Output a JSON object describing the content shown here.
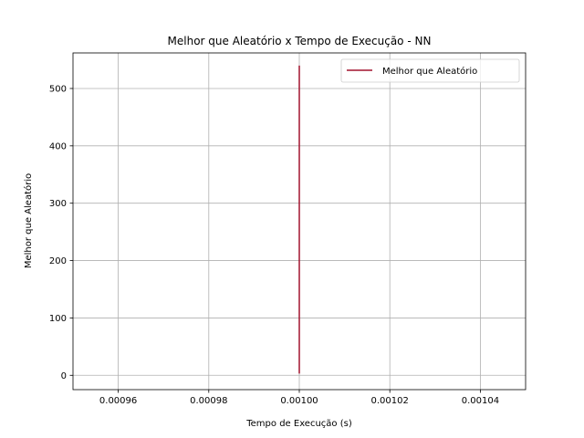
{
  "chart_data": {
    "type": "line",
    "title": "Melhor que Aleatório x Tempo de Execução - NN",
    "xlabel": "Tempo de Execução (s)",
    "ylabel": "Melhor que Aleatório",
    "xlim": [
      0.00095,
      0.00105
    ],
    "ylim": [
      -25,
      562
    ],
    "x_ticks": [
      0.00096,
      0.00098,
      0.001,
      0.00102,
      0.00104
    ],
    "x_tick_labels": [
      "0.00096",
      "0.00098",
      "0.00100",
      "0.00102",
      "0.00104"
    ],
    "y_ticks": [
      0,
      100,
      200,
      300,
      400,
      500
    ],
    "y_tick_labels": [
      "0",
      "100",
      "200",
      "300",
      "400",
      "500"
    ],
    "grid": true,
    "legend_position": "top-right",
    "series": [
      {
        "name": "Melhor que Aleatório",
        "color": "#a2142f",
        "x": [
          0.001,
          0.001
        ],
        "y": [
          3,
          540
        ]
      }
    ]
  }
}
